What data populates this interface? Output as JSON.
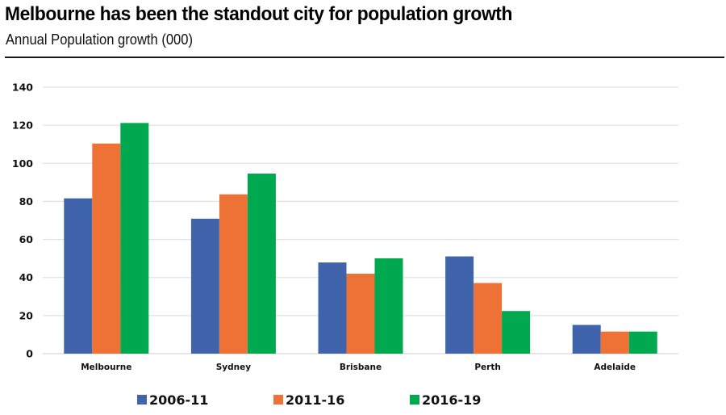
{
  "header": {
    "title": "Melbourne has been the standout city for population growth",
    "subtitle": "Annual Population growth (000)"
  },
  "chart_data": {
    "type": "bar",
    "title": "Melbourne has been the standout city for population growth",
    "subtitle": "Annual Population growth (000)",
    "xlabel": "",
    "ylabel": "",
    "categories": [
      "Melbourne",
      "Sydney",
      "Brisbane",
      "Perth",
      "Adelaide"
    ],
    "series": [
      {
        "name": "2006-11",
        "color": "#4064AC",
        "values": [
          81.6,
          70.9,
          47.9,
          51.1,
          15.1
        ]
      },
      {
        "name": "2011-16",
        "color": "#EE7236",
        "values": [
          110.4,
          83.7,
          42.0,
          37.1,
          11.6
        ]
      },
      {
        "name": "2016-19",
        "color": "#00A84F",
        "values": [
          121.2,
          94.6,
          50.1,
          22.4,
          11.6
        ]
      }
    ],
    "ylim": [
      0,
      140
    ],
    "yticks": [
      0,
      20,
      40,
      60,
      80,
      100,
      120,
      140
    ],
    "grid": true,
    "legend_position": "bottom"
  }
}
